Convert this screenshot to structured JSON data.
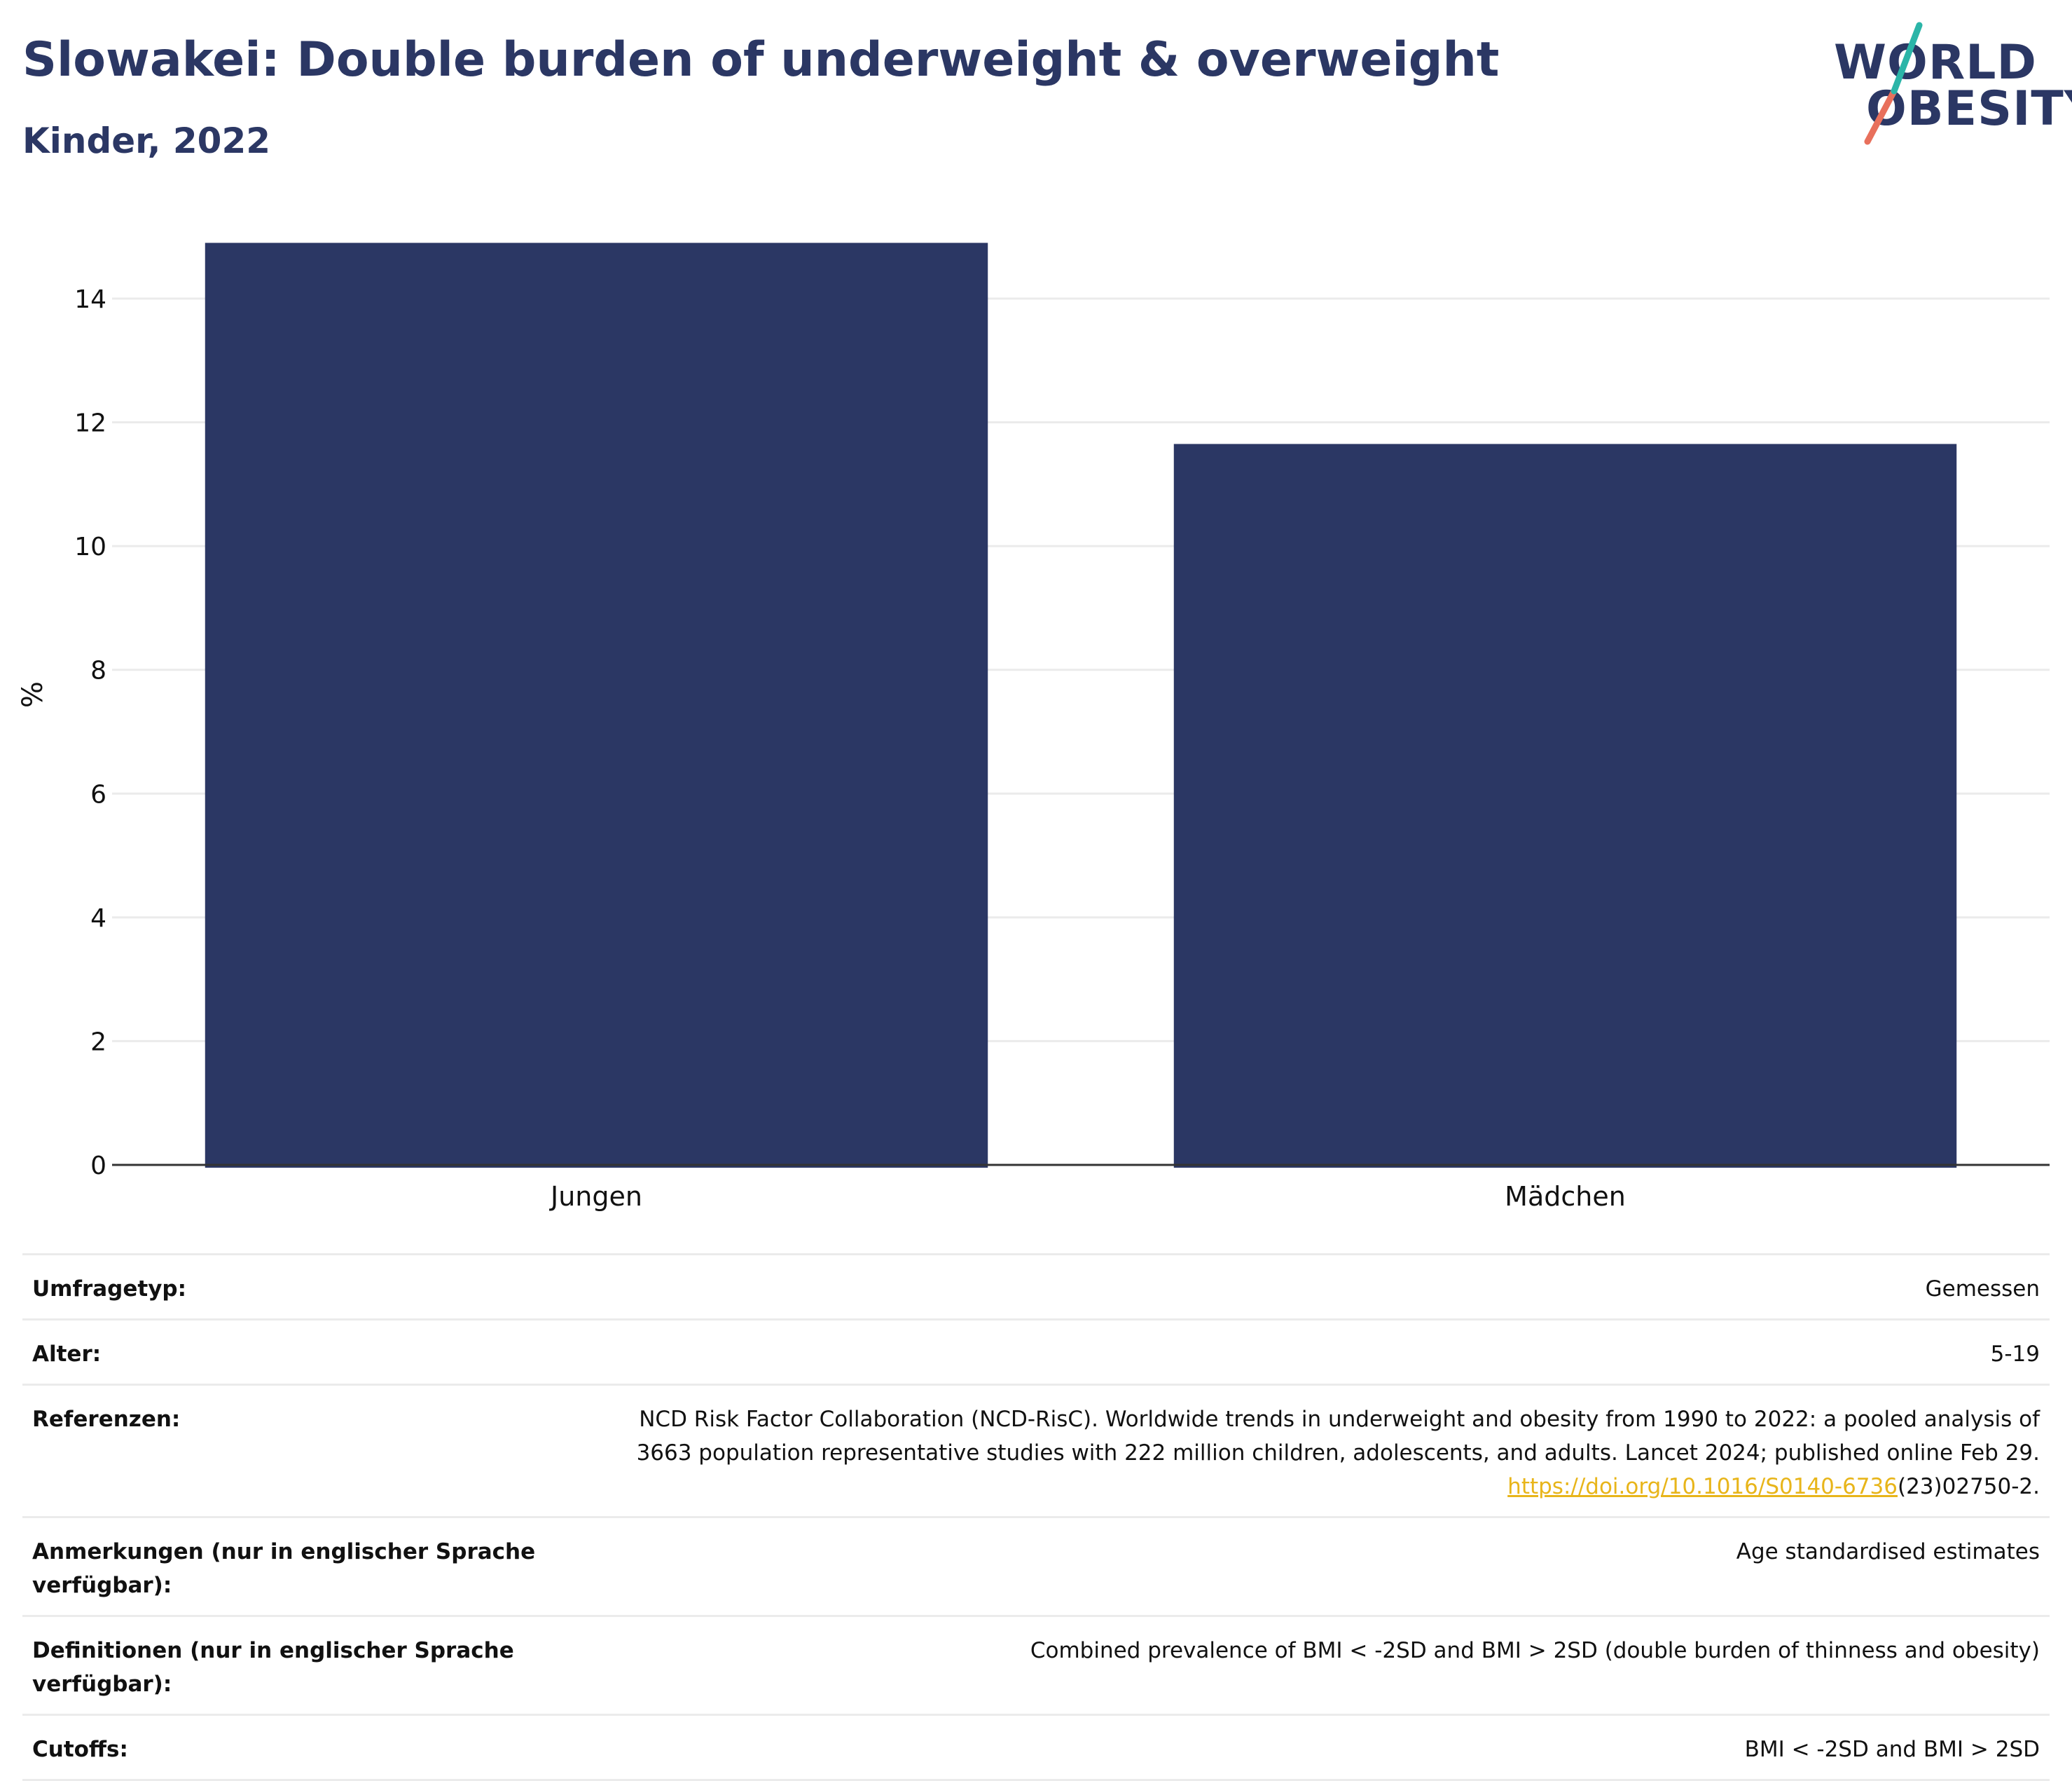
{
  "header": {
    "title": "Slowakei: Double burden of underweight & overweight",
    "subtitle": "Kinder, 2022"
  },
  "logo": {
    "line1": "WORLD",
    "line2": "OBESITY",
    "accent_teal": "#2bb5a8",
    "accent_coral": "#e8705c"
  },
  "chart_data": {
    "type": "bar",
    "categories": [
      "Jungen",
      "Mädchen"
    ],
    "values": [
      14.9,
      11.65
    ],
    "ylabel": "%",
    "ylim": [
      0,
      15.2
    ],
    "yticks": [
      0,
      2,
      4,
      6,
      8,
      10,
      12,
      14
    ],
    "grid": true,
    "bar_color": "#2b3764"
  },
  "meta": {
    "survey_type": {
      "label": "Umfragetyp:",
      "value": "Gemessen"
    },
    "age": {
      "label": "Alter:",
      "value": "5-19"
    },
    "references": {
      "label": "Referenzen:",
      "line1": "NCD Risk Factor Collaboration (NCD-RisC). Worldwide trends in underweight and obesity from 1990 to 2022: a pooled analysis of",
      "line2": "3663 population representative studies with 222 million children, adolescents, and adults. Lancet 2024; published online Feb 29.",
      "link": "https://doi.org/10.1016/S0140-6736",
      "link_tail": "(23)02750-2."
    },
    "notes": {
      "label": "Anmerkungen (nur in englischer Sprache verfügbar):",
      "value": "Age standardised estimates"
    },
    "definitions": {
      "label": "Definitionen (nur in englischer Sprache verfügbar):",
      "value": "Combined prevalence of BMI < -2SD and BMI > 2SD (double burden of thinness and obesity)"
    },
    "cutoffs": {
      "label": "Cutoffs:",
      "value": "BMI < -2SD and BMI > 2SD"
    }
  }
}
